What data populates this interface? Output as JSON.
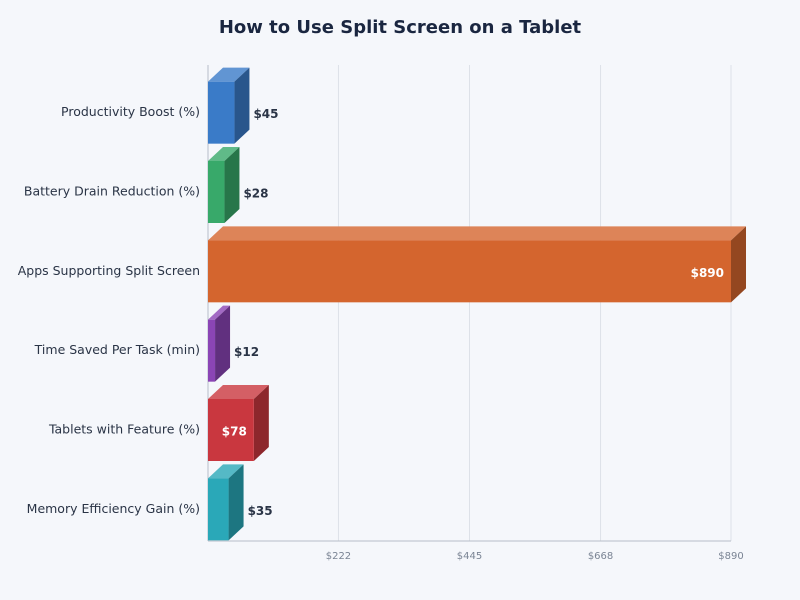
{
  "chart_data": {
    "type": "bar3d_horizontal",
    "title": "How to Use Split Screen on a Tablet",
    "categories": [
      "Productivity Boost (%)",
      "Battery Drain Reduction (%)",
      "Apps Supporting Split Screen",
      "Time Saved Per Task (min)",
      "Tablets with Feature (%)",
      "Memory Efficiency Gain (%)"
    ],
    "values": [
      45,
      28,
      890,
      12,
      78,
      35
    ],
    "value_labels": [
      "$45",
      "$28",
      "$890",
      "$12",
      "$78",
      "$35"
    ],
    "colors": [
      "#3a7bc8",
      "#38a96a",
      "#d4652e",
      "#8b45b5",
      "#c9373f",
      "#2aa8b8"
    ],
    "xlim": [
      0,
      890
    ],
    "xticks": [
      {
        "value": 222,
        "label": "$222"
      },
      {
        "value": 445,
        "label": "$445"
      },
      {
        "value": 668,
        "label": "$668"
      },
      {
        "value": 890,
        "label": "$890"
      }
    ],
    "grid": true
  }
}
